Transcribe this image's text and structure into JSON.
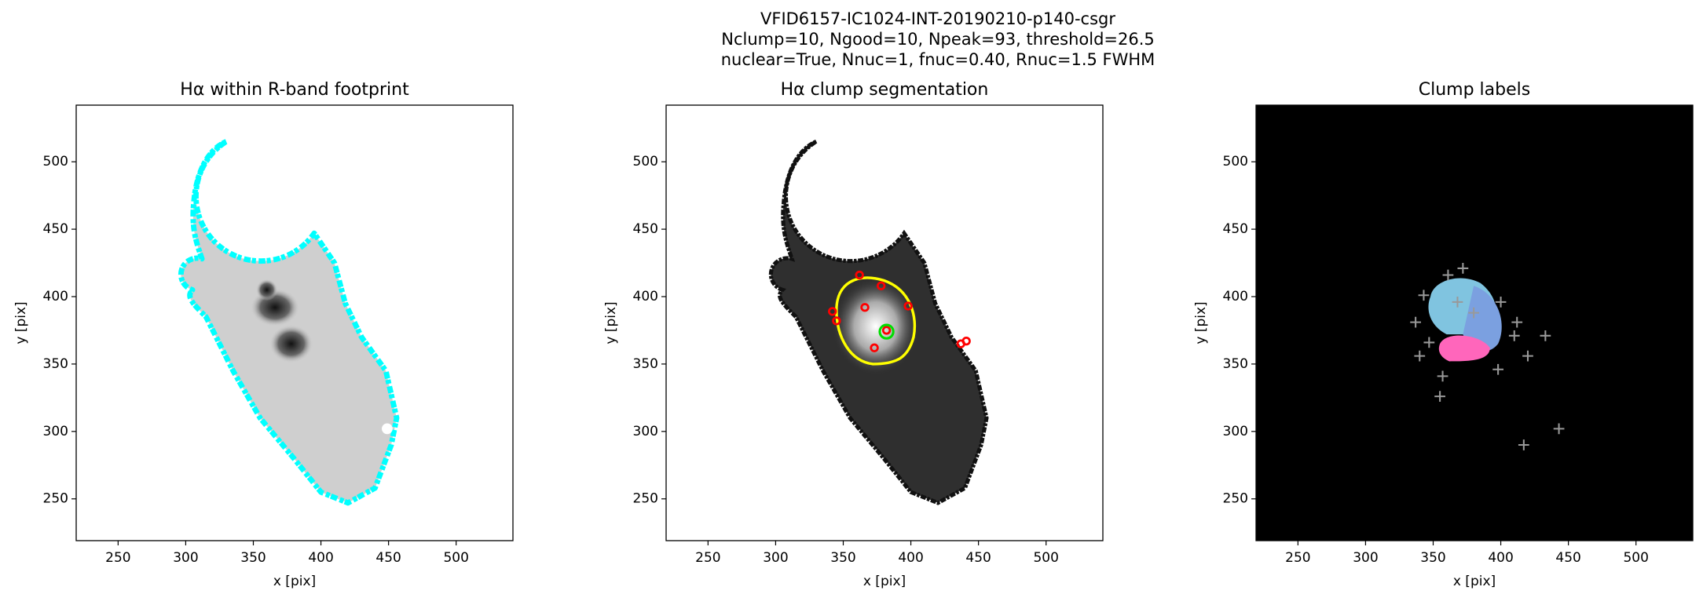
{
  "figure_title": [
    "VFID6157-IC1024-INT-20190210-p140-csgr",
    "Nclump=10, Ngood=10, Npeak=93, threshold=26.5",
    "nuclear=True, Nnuc=1, fnuc=0.40, Rnuc=1.5 FWHM"
  ],
  "chart_data": [
    {
      "type": "image",
      "title": "Hα within R-band footprint",
      "x_label": "x [pix]",
      "y_label": "y [pix]",
      "xlim": [
        219,
        542
      ],
      "ylim": [
        219,
        542
      ],
      "xticks": [
        250,
        300,
        350,
        400,
        450,
        500
      ],
      "yticks": [
        250,
        300,
        350,
        400,
        450,
        500
      ]
    },
    {
      "type": "image",
      "title": "Hα clump segmentation",
      "x_label": "x [pix]",
      "y_label": "y [pix]",
      "xlim": [
        219,
        542
      ],
      "ylim": [
        219,
        542
      ],
      "xticks": [
        250,
        300,
        350,
        400,
        450,
        500
      ],
      "yticks": [
        250,
        300,
        350,
        400,
        450,
        500
      ]
    },
    {
      "type": "image",
      "title": "Clump labels",
      "x_label": "x [pix]",
      "y_label": "y [pix]",
      "xlim": [
        219,
        542
      ],
      "ylim": [
        219,
        542
      ],
      "xticks": [
        250,
        300,
        350,
        400,
        450,
        500
      ],
      "yticks": [
        250,
        300,
        350,
        400,
        450,
        500
      ]
    }
  ]
}
